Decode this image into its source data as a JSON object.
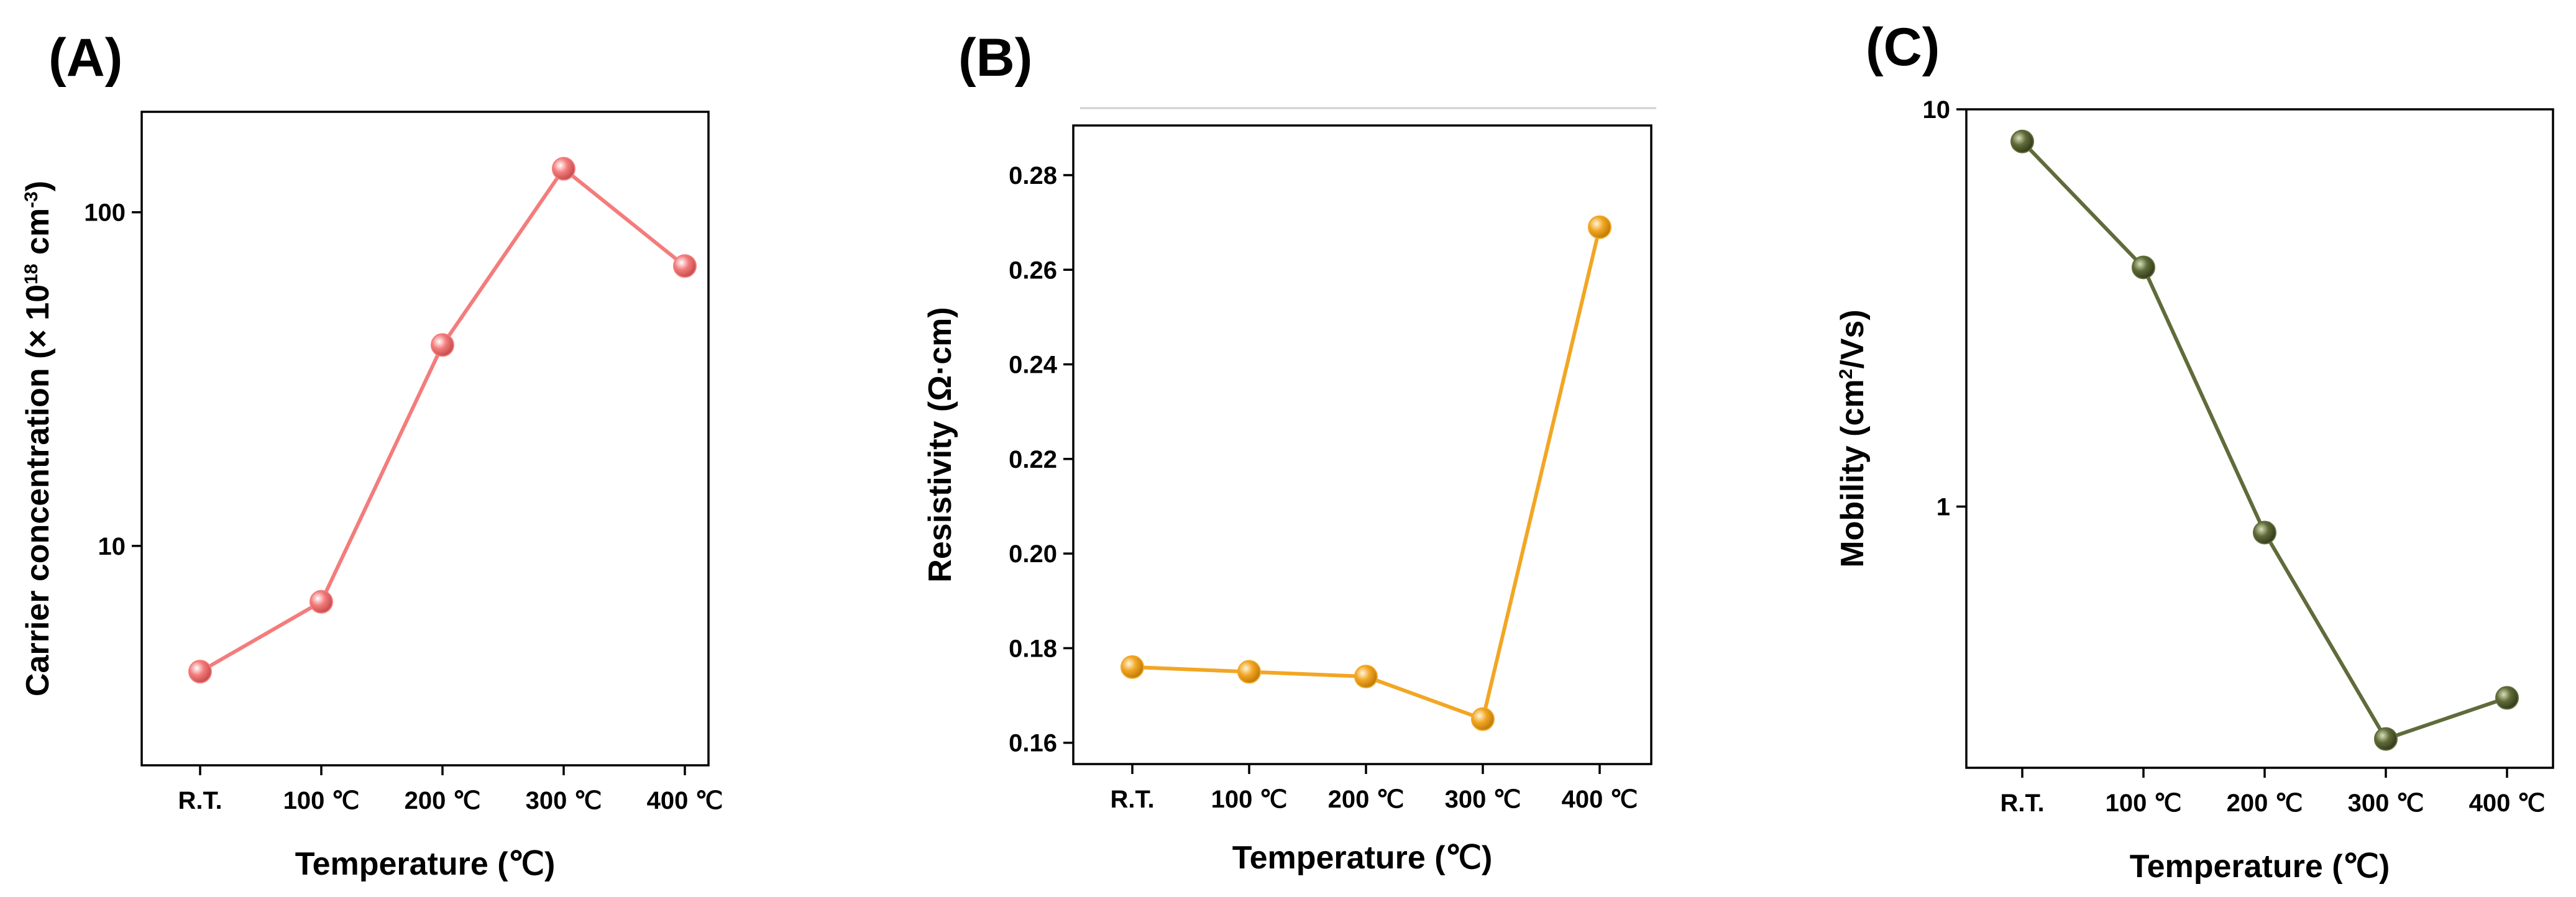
{
  "chart_data": [
    {
      "panel": "(A)",
      "type": "line",
      "scale": "log",
      "xlabel": "Temperature (℃)",
      "ylabel": {
        "main": "Carrier concentration (× 10",
        "sup1": "18",
        "mid": " cm",
        "sup2": "-3",
        "end": ")"
      },
      "categories": [
        "R.T.",
        "100 ℃",
        "200 ℃",
        "300 ℃",
        "400 ℃"
      ],
      "values": [
        4.2,
        6.8,
        40,
        135,
        69
      ],
      "ylim": [
        2.2,
        200
      ],
      "yticks": [
        10,
        100
      ],
      "ytick_labels": [
        "10",
        "100"
      ],
      "color": "#F47C7C"
    },
    {
      "panel": "(B)",
      "type": "line",
      "scale": "linear",
      "xlabel": "Temperature (℃)",
      "ylabel": {
        "main": "Resistivity (Ω·cm)"
      },
      "categories": [
        "R.T.",
        "100 ℃",
        "200 ℃",
        "300 ℃",
        "400 ℃"
      ],
      "values": [
        0.176,
        0.175,
        0.174,
        0.165,
        0.269
      ],
      "ylim": [
        0.1555,
        0.2905
      ],
      "yticks": [
        0.16,
        0.18,
        0.2,
        0.22,
        0.24,
        0.26,
        0.28
      ],
      "ytick_labels": [
        "0.16",
        "0.18",
        "0.20",
        "0.22",
        "0.24",
        "0.26",
        "0.28"
      ],
      "color": "#F2A623"
    },
    {
      "panel": "(C)",
      "type": "line",
      "scale": "log",
      "xlabel": "Temperature (℃)",
      "ylabel": {
        "main": "Mobility (cm",
        "sup1": "2",
        "mid": "/Vs)"
      },
      "categories": [
        "R.T.",
        "100 ℃",
        "200 ℃",
        "300 ℃",
        "400 ℃"
      ],
      "values": [
        8.3,
        4.0,
        0.86,
        0.26,
        0.33
      ],
      "ylim": [
        0.22,
        10
      ],
      "yticks": [
        1,
        10
      ],
      "ytick_labels": [
        "1",
        "10"
      ],
      "color": "#5F6B3A"
    }
  ]
}
